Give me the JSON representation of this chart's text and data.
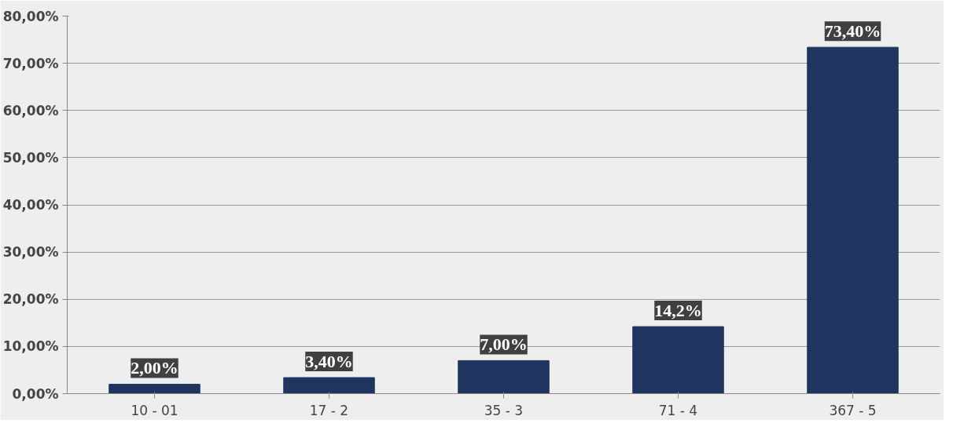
{
  "chart_data": {
    "type": "bar",
    "categories": [
      "10 - 01",
      "17 - 2",
      "35 - 3",
      "71 - 4",
      "367 - 5"
    ],
    "values": [
      2.0,
      3.4,
      7.0,
      14.2,
      73.4
    ],
    "value_labels": [
      "2,00%",
      "3,40%",
      "7,00%",
      "14,2%",
      "73,40%"
    ],
    "color": "#1f3560",
    "ylim": [
      0,
      80
    ],
    "yticks": [
      {
        "value": 0,
        "label": "0,00%"
      },
      {
        "value": 10,
        "label": "10,00%"
      },
      {
        "value": 20,
        "label": "20,00%"
      },
      {
        "value": 30,
        "label": "30,00%"
      },
      {
        "value": 40,
        "label": "40,00%"
      },
      {
        "value": 50,
        "label": "50,00%"
      },
      {
        "value": 60,
        "label": "60,00%"
      },
      {
        "value": 70,
        "label": "70,00%"
      },
      {
        "value": 80,
        "label": "80,00%"
      }
    ],
    "grid": "y"
  }
}
